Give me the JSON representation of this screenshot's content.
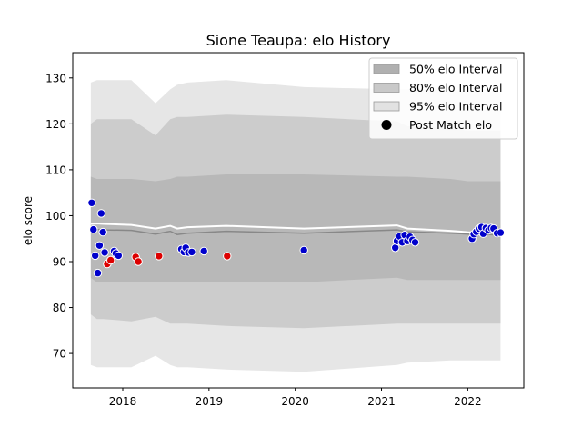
{
  "chart_data": {
    "type": "scatter",
    "title": "Sione Teaupa: elo History",
    "xlabel": "",
    "ylabel": "elo score",
    "xlim": [
      2017.42,
      2022.65
    ],
    "ylim": [
      62.5,
      135.5
    ],
    "x_ticks": [
      2018,
      2019,
      2020,
      2021,
      2022
    ],
    "x_tick_labels": [
      "2018",
      "2019",
      "2020",
      "2021",
      "2022"
    ],
    "y_ticks": [
      70,
      80,
      90,
      100,
      110,
      120,
      130
    ],
    "y_tick_labels": [
      "70",
      "80",
      "90",
      "100",
      "110",
      "120",
      "130"
    ],
    "grid": false,
    "legend": {
      "placement": "top-right",
      "entries": [
        {
          "label": "50% elo Interval",
          "color": "#b0b0b0",
          "kind": "patch"
        },
        {
          "label": "80% elo Interval",
          "color": "#c9c9c9",
          "kind": "patch"
        },
        {
          "label": "95% elo Interval",
          "color": "#e2e2e2",
          "kind": "patch"
        },
        {
          "label": "Post Match elo",
          "color": "#000000",
          "kind": "marker"
        }
      ]
    },
    "colors": {
      "win": "#0000cc",
      "loss": "#dd0000",
      "mean_line": "#ffffff",
      "median_line": "#888888"
    },
    "band_x": [
      2017.63,
      2017.7,
      2017.78,
      2018.1,
      2018.38,
      2018.55,
      2018.63,
      2018.75,
      2019.2,
      2020.1,
      2021.18,
      2021.3,
      2021.8,
      2022.0,
      2022.25,
      2022.38
    ],
    "band_95_upper": [
      129,
      129.5,
      129.5,
      129.5,
      124.5,
      127.5,
      128.5,
      129,
      129.5,
      128,
      127.5,
      127.5,
      127.5,
      127,
      127,
      127
    ],
    "band_95_lower": [
      67.5,
      67,
      67,
      67,
      69.5,
      67.5,
      67,
      67,
      66.5,
      66,
      67.5,
      68,
      68.5,
      68.5,
      68.5,
      68.5
    ],
    "band_80_upper": [
      120,
      121,
      121,
      121,
      117.5,
      121,
      121.5,
      121.5,
      122,
      121.5,
      120.5,
      119.5,
      119,
      118.5,
      118.5,
      118.5
    ],
    "band_80_lower": [
      78.5,
      77.5,
      77.5,
      77,
      78,
      76.5,
      76.5,
      76.5,
      76,
      75.5,
      76.5,
      76.5,
      76.5,
      76.5,
      76.5,
      76.5
    ],
    "band_50_upper": [
      108.5,
      108,
      108,
      108,
      107.5,
      108,
      108.5,
      108.5,
      109,
      109,
      108.5,
      108.5,
      108,
      107.5,
      107.5,
      107.5
    ],
    "band_50_lower": [
      86.5,
      85.5,
      85.5,
      85.5,
      85.5,
      85.5,
      85.5,
      85.5,
      85.5,
      85.5,
      86.5,
      86,
      86,
      86,
      86,
      86
    ],
    "mean_y": [
      98.2,
      98.3,
      98.2,
      98.0,
      97.2,
      97.8,
      97.2,
      97.5,
      97.8,
      97.2,
      97.9,
      97.2,
      96.7,
      96.4,
      96.3,
      96.2
    ],
    "median_y": [
      97.2,
      97.0,
      96.9,
      96.8,
      96.0,
      96.6,
      95.9,
      96.2,
      96.6,
      96.2,
      96.9,
      96.5,
      96.2,
      96.0,
      95.9,
      95.8
    ],
    "series": [
      {
        "name": "Post Match elo",
        "points": [
          {
            "x": 2017.64,
            "y": 102.8,
            "result": "win"
          },
          {
            "x": 2017.66,
            "y": 97.0,
            "result": "win"
          },
          {
            "x": 2017.68,
            "y": 91.3,
            "result": "win"
          },
          {
            "x": 2017.71,
            "y": 87.5,
            "result": "win"
          },
          {
            "x": 2017.73,
            "y": 93.5,
            "result": "win"
          },
          {
            "x": 2017.75,
            "y": 100.5,
            "result": "win"
          },
          {
            "x": 2017.77,
            "y": 96.4,
            "result": "win"
          },
          {
            "x": 2017.79,
            "y": 92.0,
            "result": "win"
          },
          {
            "x": 2017.82,
            "y": 89.5,
            "result": "loss"
          },
          {
            "x": 2017.86,
            "y": 90.3,
            "result": "loss"
          },
          {
            "x": 2017.9,
            "y": 92.3,
            "result": "win"
          },
          {
            "x": 2017.92,
            "y": 91.8,
            "result": "win"
          },
          {
            "x": 2017.95,
            "y": 91.3,
            "result": "win"
          },
          {
            "x": 2018.15,
            "y": 91.0,
            "result": "loss"
          },
          {
            "x": 2018.18,
            "y": 90.0,
            "result": "loss"
          },
          {
            "x": 2018.42,
            "y": 91.2,
            "result": "loss"
          },
          {
            "x": 2018.68,
            "y": 92.7,
            "result": "win"
          },
          {
            "x": 2018.71,
            "y": 92.1,
            "result": "win"
          },
          {
            "x": 2018.73,
            "y": 93.0,
            "result": "win"
          },
          {
            "x": 2018.76,
            "y": 92.0,
            "result": "win"
          },
          {
            "x": 2018.8,
            "y": 92.1,
            "result": "win"
          },
          {
            "x": 2018.94,
            "y": 92.3,
            "result": "win"
          },
          {
            "x": 2019.21,
            "y": 91.2,
            "result": "loss"
          },
          {
            "x": 2020.1,
            "y": 92.5,
            "result": "win"
          },
          {
            "x": 2021.16,
            "y": 93.0,
            "result": "win"
          },
          {
            "x": 2021.18,
            "y": 94.5,
            "result": "win"
          },
          {
            "x": 2021.21,
            "y": 95.5,
            "result": "win"
          },
          {
            "x": 2021.24,
            "y": 94.2,
            "result": "win"
          },
          {
            "x": 2021.27,
            "y": 95.8,
            "result": "win"
          },
          {
            "x": 2021.3,
            "y": 94.5,
            "result": "win"
          },
          {
            "x": 2021.33,
            "y": 95.4,
            "result": "win"
          },
          {
            "x": 2021.36,
            "y": 94.7,
            "result": "win"
          },
          {
            "x": 2021.39,
            "y": 94.2,
            "result": "win"
          },
          {
            "x": 2022.05,
            "y": 95.0,
            "result": "win"
          },
          {
            "x": 2022.07,
            "y": 96.0,
            "result": "win"
          },
          {
            "x": 2022.1,
            "y": 96.5,
            "result": "win"
          },
          {
            "x": 2022.13,
            "y": 97.2,
            "result": "win"
          },
          {
            "x": 2022.16,
            "y": 97.5,
            "result": "win"
          },
          {
            "x": 2022.18,
            "y": 96.1,
            "result": "win"
          },
          {
            "x": 2022.21,
            "y": 97.3,
            "result": "win"
          },
          {
            "x": 2022.24,
            "y": 96.8,
            "result": "win"
          },
          {
            "x": 2022.27,
            "y": 97.3,
            "result": "win"
          },
          {
            "x": 2022.3,
            "y": 97.2,
            "result": "win"
          },
          {
            "x": 2022.34,
            "y": 96.2,
            "result": "win"
          },
          {
            "x": 2022.38,
            "y": 96.3,
            "result": "win"
          }
        ]
      }
    ]
  }
}
